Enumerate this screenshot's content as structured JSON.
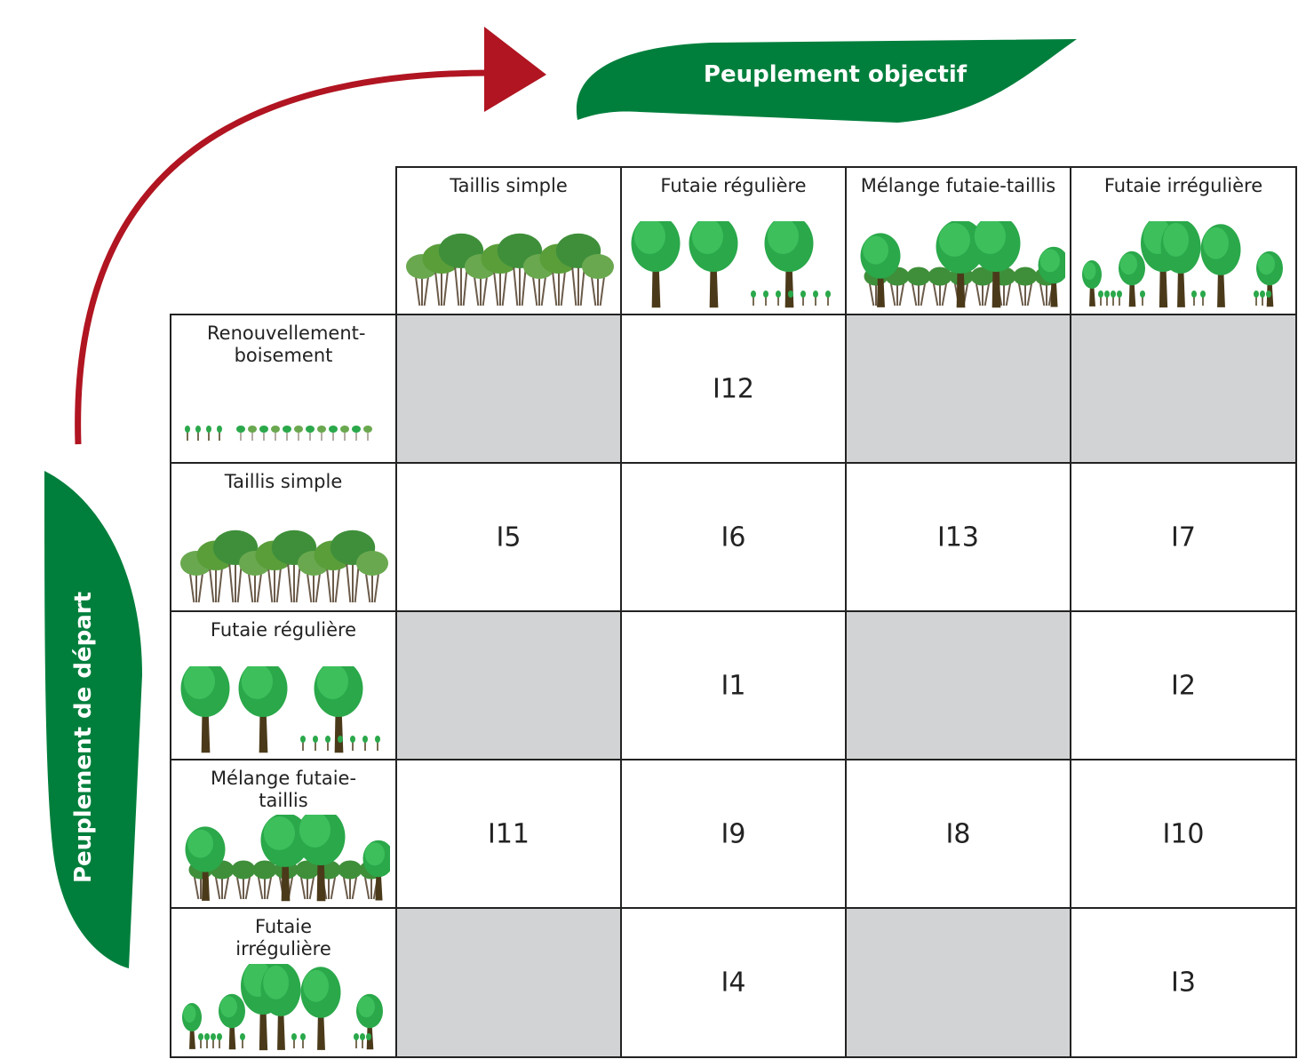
{
  "header": {
    "title": "Peuplement objectif"
  },
  "side": {
    "title": "Peuplement de départ"
  },
  "table": {
    "columns": [
      "Taillis simple",
      "Futaie régulière",
      "Mélange futaie-taillis",
      "Futaie irrégulière"
    ],
    "rows": [
      {
        "label": "Renouvellement-boisement",
        "cells": [
          null,
          "I12",
          null,
          null
        ]
      },
      {
        "label": "Taillis simple",
        "cells": [
          "I5",
          "I6",
          "I13",
          "I7"
        ]
      },
      {
        "label": "Futaie régulière",
        "cells": [
          null,
          "I1",
          null,
          "I2"
        ]
      },
      {
        "label": "Mélange futaie-taillis",
        "cells": [
          "I11",
          "I9",
          "I8",
          "I10"
        ]
      },
      {
        "label": "Futaie irrégulière",
        "cells": [
          null,
          "I4",
          null,
          "I3"
        ]
      }
    ]
  }
}
